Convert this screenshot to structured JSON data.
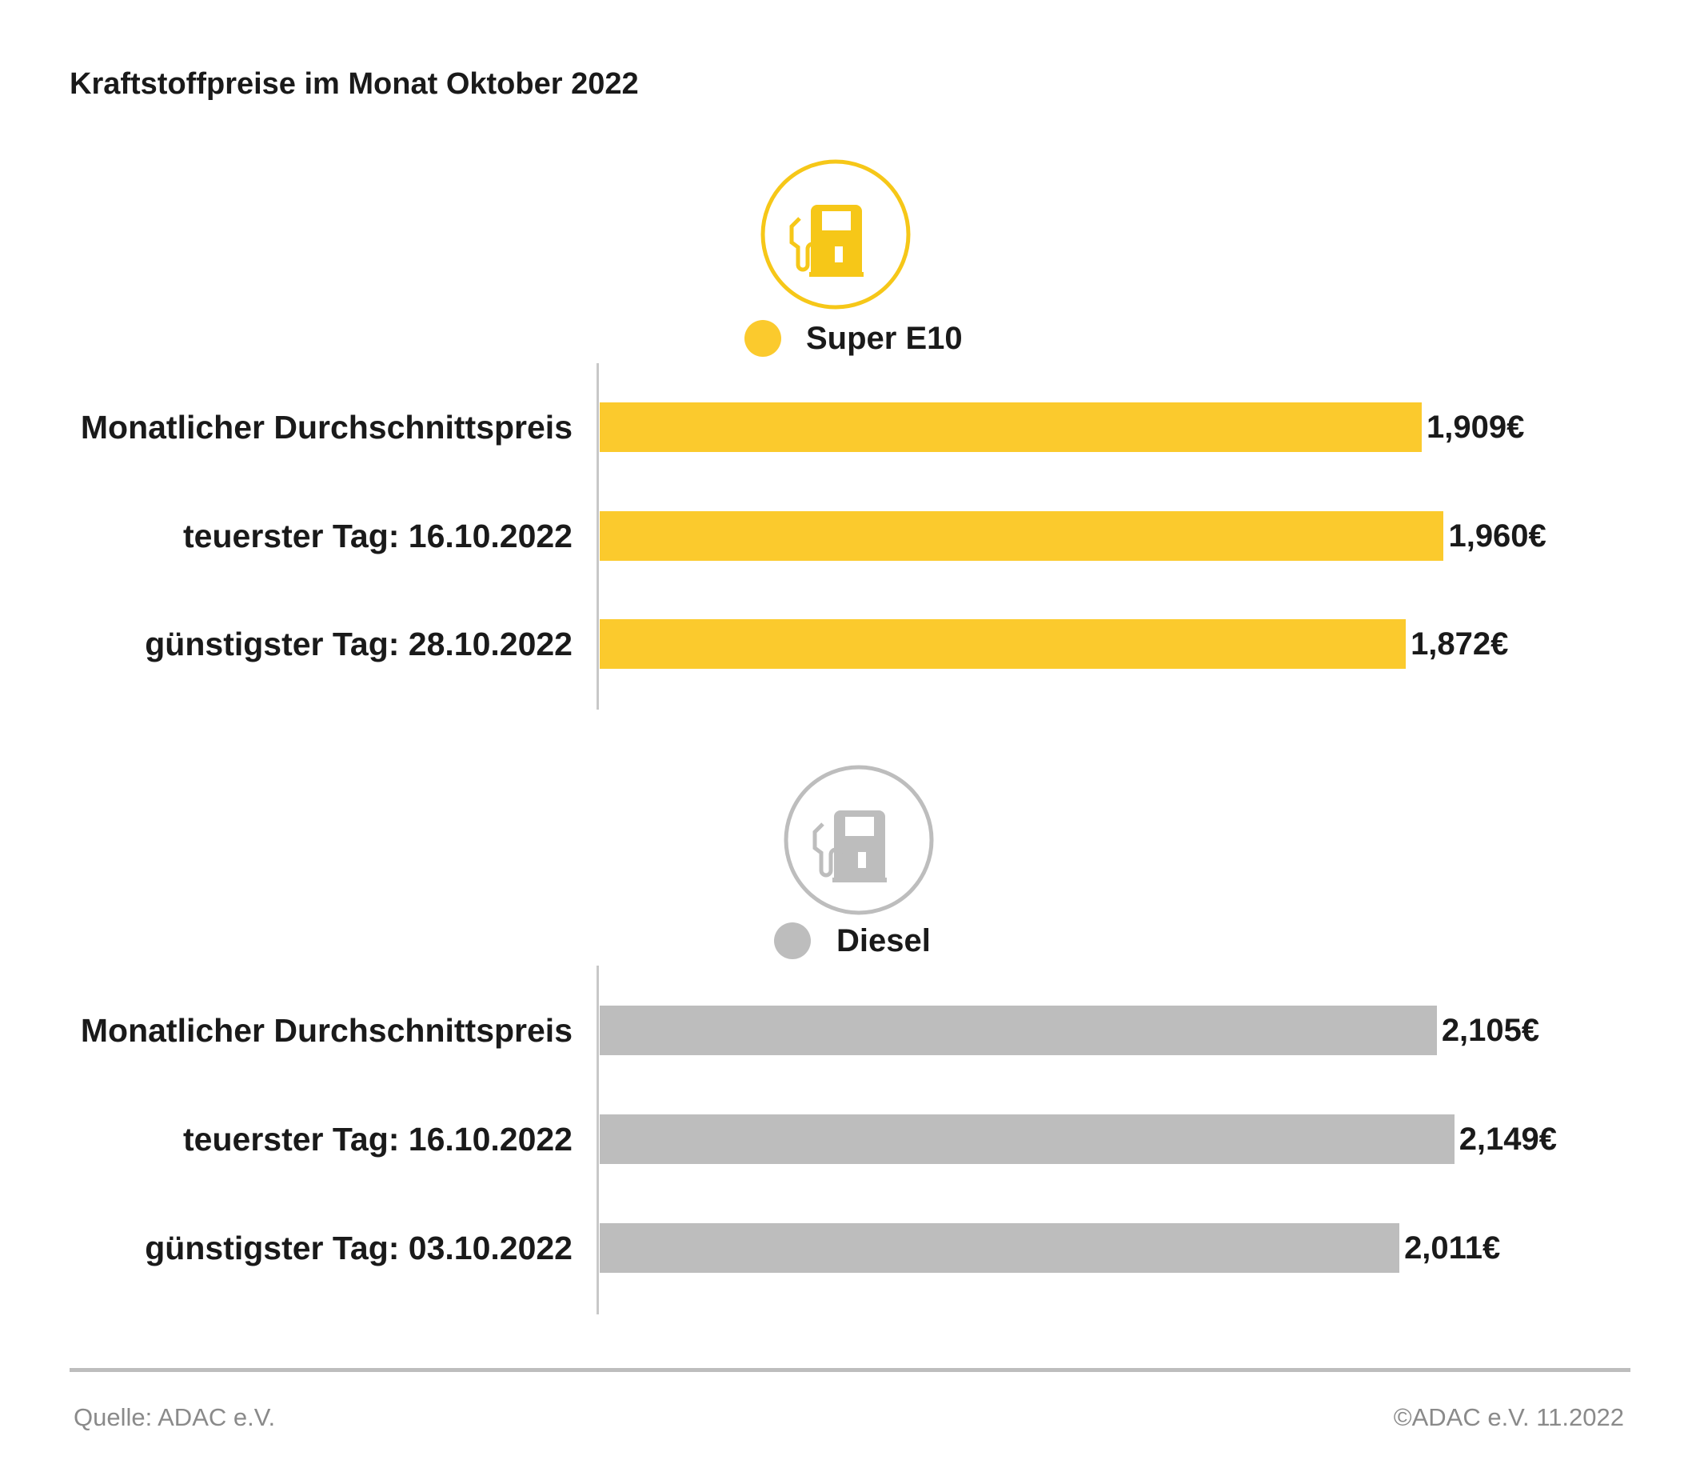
{
  "title": "Kraftstoffpreise im Monat Oktober 2022",
  "colors": {
    "super_e10": "#fbca2d",
    "diesel": "#bdbdbd",
    "icon_e10": "#f6c718",
    "icon_diesel": "#bdbdbd"
  },
  "chart_data": [
    {
      "type": "bar",
      "orientation": "horizontal",
      "series_name": "Super E10",
      "icon": "fuel-pump-icon",
      "categories": [
        "Monatlicher Durchschnittspreis",
        "teuerster Tag: 16.10.2022",
        "günstigster Tag: 28.10.2022"
      ],
      "values": [
        1.909,
        1.96,
        1.872
      ],
      "value_labels": [
        "1,909€",
        "1,960€",
        "1,872€"
      ],
      "unit": "€"
    },
    {
      "type": "bar",
      "orientation": "horizontal",
      "series_name": "Diesel",
      "icon": "fuel-pump-icon",
      "categories": [
        "Monatlicher Durchschnittspreis",
        "teuerster Tag: 16.10.2022",
        "günstigster Tag: 03.10.2022"
      ],
      "values": [
        2.105,
        2.149,
        2.011
      ],
      "value_labels": [
        "2,105€",
        "2,149€",
        "2,011€"
      ],
      "unit": "€"
    }
  ],
  "footer": {
    "source": "Quelle: ADAC e.V.",
    "copyright": "©ADAC e.V. 11.2022"
  }
}
